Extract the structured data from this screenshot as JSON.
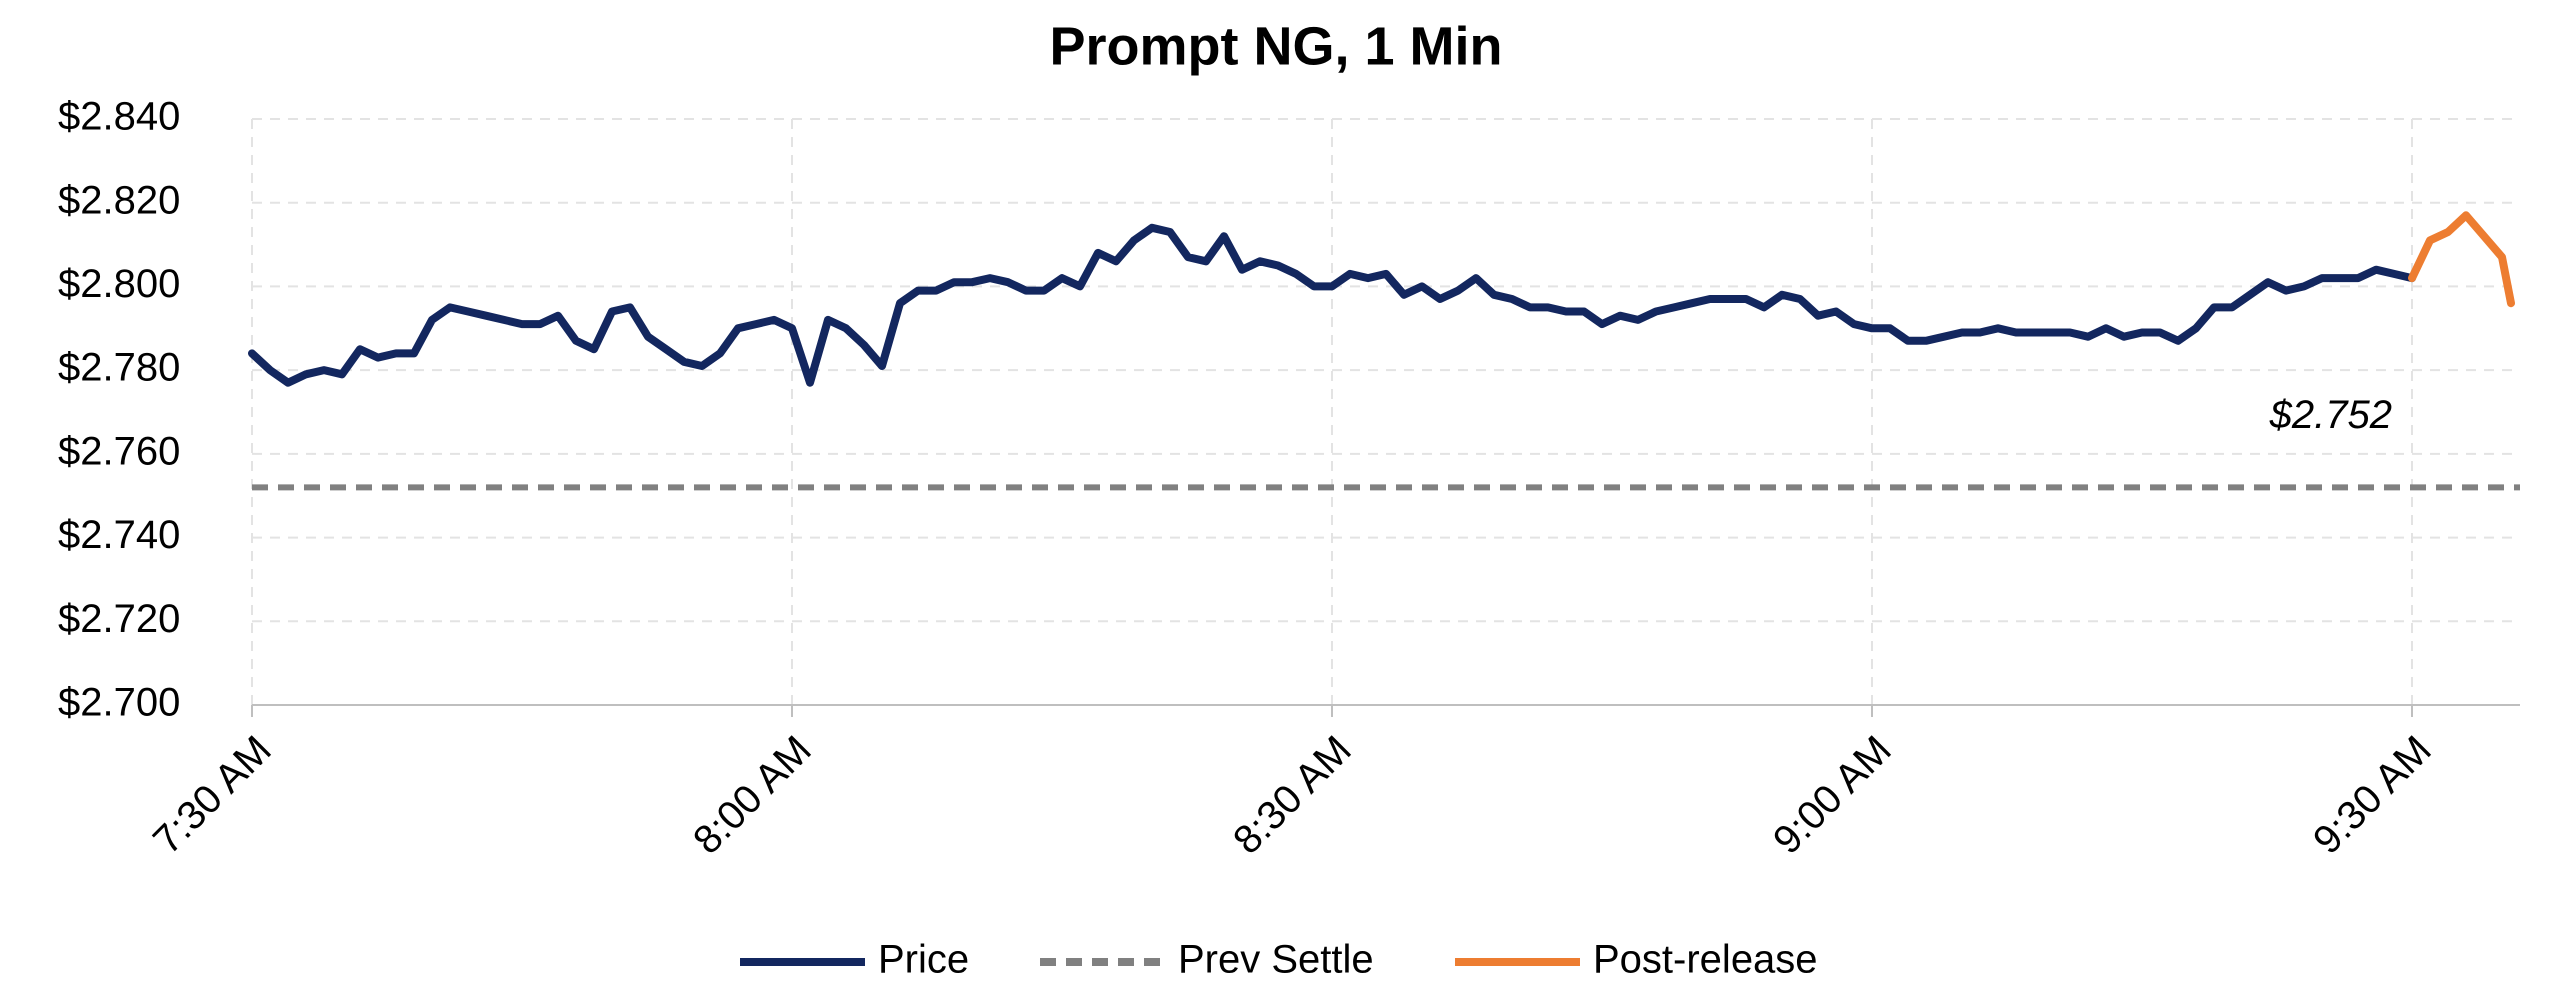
{
  "chart_data": {
    "type": "line",
    "title": "Prompt NG, 1 Min",
    "xlim": [
      0,
      126
    ],
    "xticks": [
      {
        "value": 0,
        "label": "7:30 AM"
      },
      {
        "value": 30,
        "label": "8:00 AM"
      },
      {
        "value": 60,
        "label": "8:30 AM"
      },
      {
        "value": 90,
        "label": "9:00 AM"
      },
      {
        "value": 120,
        "label": "9:30 AM"
      }
    ],
    "ylim": [
      2.7,
      2.84
    ],
    "yticks": [
      {
        "value": 2.7,
        "label": "$2.700"
      },
      {
        "value": 2.72,
        "label": "$2.720"
      },
      {
        "value": 2.74,
        "label": "$2.740"
      },
      {
        "value": 2.76,
        "label": "$2.760"
      },
      {
        "value": 2.78,
        "label": "$2.780"
      },
      {
        "value": 2.8,
        "label": "$2.800"
      },
      {
        "value": 2.82,
        "label": "$2.820"
      },
      {
        "value": 2.84,
        "label": "$2.840"
      }
    ],
    "grid": true,
    "series": [
      {
        "name": "Price",
        "color": "#13275f",
        "x": [
          0,
          1,
          2,
          3,
          4,
          5,
          6,
          7,
          8,
          9,
          10,
          11,
          12,
          13,
          14,
          15,
          16,
          17,
          18,
          19,
          20,
          21,
          22,
          23,
          24,
          25,
          26,
          27,
          28,
          29,
          30,
          31,
          32,
          33,
          34,
          35,
          36,
          37,
          38,
          39,
          40,
          41,
          42,
          43,
          44,
          45,
          46,
          47,
          48,
          49,
          50,
          51,
          52,
          53,
          54,
          55,
          56,
          57,
          58,
          59,
          60,
          61,
          62,
          63,
          64,
          65,
          66,
          67,
          68,
          69,
          70,
          71,
          72,
          73,
          74,
          75,
          76,
          77,
          78,
          79,
          80,
          81,
          82,
          83,
          84,
          85,
          86,
          87,
          88,
          89,
          90,
          91,
          92,
          93,
          94,
          95,
          96,
          97,
          98,
          99,
          100,
          101,
          102,
          103,
          104,
          105,
          106,
          107,
          108,
          109,
          110,
          111,
          112,
          113,
          114,
          115,
          116,
          117,
          118,
          119,
          120
        ],
        "values": [
          2.784,
          2.78,
          2.777,
          2.779,
          2.78,
          2.779,
          2.785,
          2.783,
          2.784,
          2.784,
          2.792,
          2.795,
          2.794,
          2.793,
          2.792,
          2.791,
          2.791,
          2.793,
          2.787,
          2.785,
          2.794,
          2.795,
          2.788,
          2.785,
          2.782,
          2.781,
          2.784,
          2.79,
          2.791,
          2.792,
          2.79,
          2.777,
          2.792,
          2.79,
          2.786,
          2.781,
          2.796,
          2.799,
          2.799,
          2.801,
          2.801,
          2.802,
          2.801,
          2.799,
          2.799,
          2.802,
          2.8,
          2.808,
          2.806,
          2.811,
          2.814,
          2.813,
          2.807,
          2.806,
          2.812,
          2.804,
          2.806,
          2.805,
          2.803,
          2.8,
          2.8,
          2.803,
          2.802,
          2.803,
          2.798,
          2.8,
          2.797,
          2.799,
          2.802,
          2.798,
          2.797,
          2.795,
          2.795,
          2.794,
          2.794,
          2.791,
          2.793,
          2.792,
          2.794,
          2.795,
          2.796,
          2.797,
          2.797,
          2.797,
          2.795,
          2.798,
          2.797,
          2.793,
          2.794,
          2.791,
          2.79,
          2.79,
          2.787,
          2.787,
          2.788,
          2.789,
          2.789,
          2.79,
          2.789,
          2.789,
          2.789,
          2.789,
          2.788,
          2.79,
          2.788,
          2.789,
          2.789,
          2.787,
          2.79,
          2.795,
          2.795,
          2.798,
          2.801,
          2.799,
          2.8,
          2.802,
          2.802,
          2.802,
          2.804,
          2.803,
          2.802
        ]
      },
      {
        "name": "Post-release",
        "color": "#ed7d31",
        "x": [
          120,
          121,
          122,
          123,
          124,
          125,
          125.5
        ],
        "values": [
          2.802,
          2.811,
          2.813,
          2.817,
          2.812,
          2.807,
          2.796
        ]
      }
    ],
    "reference_line": {
      "name": "Prev Settle",
      "value": 2.752,
      "color": "#808080",
      "label": "$2.752"
    }
  }
}
